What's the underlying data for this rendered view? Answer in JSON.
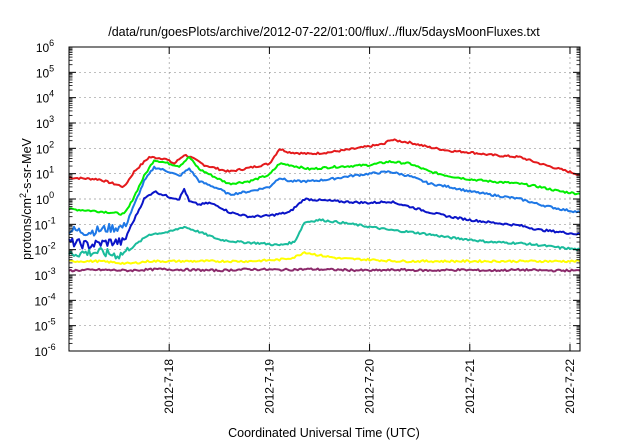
{
  "chart_data": {
    "type": "line",
    "title": "/data/run/goesPlots/archive/2012-07-22/01:00/flux/../flux/5daysMoonFluxes.txt",
    "xlabel": "Coordinated Universal Time (UTC)",
    "ylabel_prefix": "protons/cm",
    "ylabel_sup": "2",
    "ylabel_suffix": "-s-sr-MeV",
    "yscale": "log",
    "ylim_exp": [
      -6,
      6
    ],
    "ytick_base": "10",
    "yticks_exp": [
      -6,
      -5,
      -4,
      -3,
      -2,
      -1,
      0,
      1,
      2,
      3,
      4,
      5,
      6
    ],
    "ytick_exp_labels": [
      "-6",
      "-5",
      "-4",
      "-3",
      "-2",
      "-1",
      "0",
      "1",
      "2",
      "3",
      "4",
      "5",
      "6"
    ],
    "xlim_days": [
      17.0,
      22.1
    ],
    "xticks": [
      {
        "day": 18,
        "label": "2012-7-18"
      },
      {
        "day": 19,
        "label": "2012-7-19"
      },
      {
        "day": 20,
        "label": "2012-7-20"
      },
      {
        "day": 21,
        "label": "2012-7-21"
      },
      {
        "day": 22,
        "label": "2012-7-22"
      }
    ],
    "grid": true,
    "series": [
      {
        "color": "#e41a1c",
        "x": [
          17.0,
          17.3,
          17.55,
          17.65,
          17.8,
          17.95,
          18.05,
          18.15,
          18.2,
          18.35,
          18.5,
          18.6,
          18.8,
          19.0,
          19.1,
          19.2,
          19.4,
          19.6,
          19.8,
          20.0,
          20.15,
          20.2,
          20.4,
          20.6,
          20.8,
          21.0,
          21.2,
          21.5,
          21.7,
          21.9,
          22.1
        ],
        "y": [
          7,
          6,
          3,
          12,
          45,
          40,
          25,
          55,
          48,
          22,
          15,
          12,
          17,
          25,
          95,
          70,
          60,
          70,
          90,
          120,
          150,
          220,
          170,
          110,
          80,
          70,
          55,
          45,
          25,
          15,
          9
        ]
      },
      {
        "color": "#00ee00",
        "x": [
          17.0,
          17.2,
          17.4,
          17.55,
          17.6,
          17.75,
          17.85,
          18.0,
          18.1,
          18.2,
          18.3,
          18.5,
          18.6,
          18.8,
          19.0,
          19.1,
          19.2,
          19.4,
          19.6,
          19.8,
          20.0,
          20.2,
          20.4,
          20.6,
          20.8,
          21.0,
          21.2,
          21.5,
          21.7,
          21.9,
          22.1
        ],
        "y": [
          0.4,
          0.35,
          0.3,
          0.25,
          0.5,
          8,
          35,
          25,
          20,
          45,
          15,
          6,
          4,
          5,
          9,
          25,
          22,
          15,
          18,
          20,
          22,
          30,
          25,
          12,
          8,
          6,
          5,
          4,
          3,
          2,
          1.6
        ]
      },
      {
        "color": "#1e78e6",
        "x": [
          17.0,
          17.2,
          17.4,
          17.55,
          17.62,
          17.75,
          17.85,
          18.0,
          18.1,
          18.2,
          18.3,
          18.5,
          18.6,
          18.8,
          19.0,
          19.1,
          19.2,
          19.4,
          19.6,
          19.8,
          20.0,
          20.2,
          20.4,
          20.6,
          20.8,
          21.0,
          21.2,
          21.5,
          21.7,
          21.9,
          22.1
        ],
        "y": [
          0.06,
          0.05,
          0.07,
          0.08,
          0.3,
          5,
          18,
          12,
          8,
          16,
          5,
          2.5,
          1.5,
          2,
          3,
          7,
          5,
          5,
          6,
          8,
          10,
          12,
          8,
          4,
          3,
          2,
          1.5,
          1,
          0.6,
          0.4,
          0.3
        ]
      },
      {
        "color": "#0a14c8",
        "x": [
          17.0,
          17.2,
          17.4,
          17.55,
          17.6,
          17.75,
          17.85,
          18.0,
          18.1,
          18.15,
          18.2,
          18.3,
          18.4,
          18.5,
          18.6,
          18.8,
          19.0,
          19.2,
          19.35,
          19.5,
          19.7,
          20.0,
          20.2,
          20.4,
          20.6,
          20.8,
          21.0,
          21.2,
          21.5,
          21.7,
          21.9,
          22.1
        ],
        "y": [
          0.02,
          0.015,
          0.02,
          0.02,
          0.06,
          1.0,
          2.0,
          1.2,
          1.0,
          2.5,
          0.8,
          0.6,
          0.7,
          0.5,
          0.3,
          0.2,
          0.22,
          0.3,
          1.0,
          0.9,
          0.8,
          0.7,
          0.8,
          0.5,
          0.3,
          0.2,
          0.15,
          0.12,
          0.09,
          0.06,
          0.05,
          0.04
        ]
      },
      {
        "color": "#1abc9c",
        "x": [
          17.0,
          17.3,
          17.5,
          17.6,
          17.7,
          17.8,
          18.0,
          18.15,
          18.3,
          18.5,
          18.7,
          18.9,
          19.1,
          19.25,
          19.35,
          19.5,
          19.7,
          20.0,
          20.2,
          20.4,
          20.6,
          20.8,
          21.0,
          21.2,
          21.5,
          21.7,
          21.9,
          22.1
        ],
        "y": [
          0.007,
          0.008,
          0.006,
          0.01,
          0.02,
          0.04,
          0.05,
          0.08,
          0.05,
          0.025,
          0.02,
          0.018,
          0.015,
          0.02,
          0.12,
          0.15,
          0.12,
          0.08,
          0.06,
          0.05,
          0.04,
          0.03,
          0.025,
          0.02,
          0.018,
          0.015,
          0.012,
          0.01
        ]
      },
      {
        "color": "#ffff00",
        "x": [
          17.0,
          17.3,
          17.5,
          17.6,
          17.8,
          18.0,
          18.2,
          18.5,
          18.8,
          19.1,
          19.25,
          19.35,
          19.5,
          19.7,
          20.0,
          20.3,
          20.6,
          21.0,
          21.4,
          21.8,
          22.1
        ],
        "y": [
          0.0035,
          0.0035,
          0.003,
          0.0028,
          0.0035,
          0.0035,
          0.0035,
          0.0035,
          0.0035,
          0.004,
          0.005,
          0.008,
          0.006,
          0.0045,
          0.004,
          0.0035,
          0.0035,
          0.0035,
          0.0035,
          0.0035,
          0.0035
        ]
      },
      {
        "color": "#8b2a6b",
        "x": [
          17.0,
          17.3,
          17.6,
          17.9,
          18.2,
          18.5,
          18.8,
          19.1,
          19.4,
          19.7,
          20.0,
          20.3,
          20.6,
          20.9,
          21.2,
          21.5,
          21.8,
          22.1
        ],
        "y": [
          0.0015,
          0.0016,
          0.0015,
          0.0017,
          0.0016,
          0.0015,
          0.0017,
          0.0016,
          0.0017,
          0.0016,
          0.0015,
          0.0016,
          0.0015,
          0.0016,
          0.0015,
          0.0016,
          0.0015,
          0.0015
        ]
      }
    ]
  }
}
